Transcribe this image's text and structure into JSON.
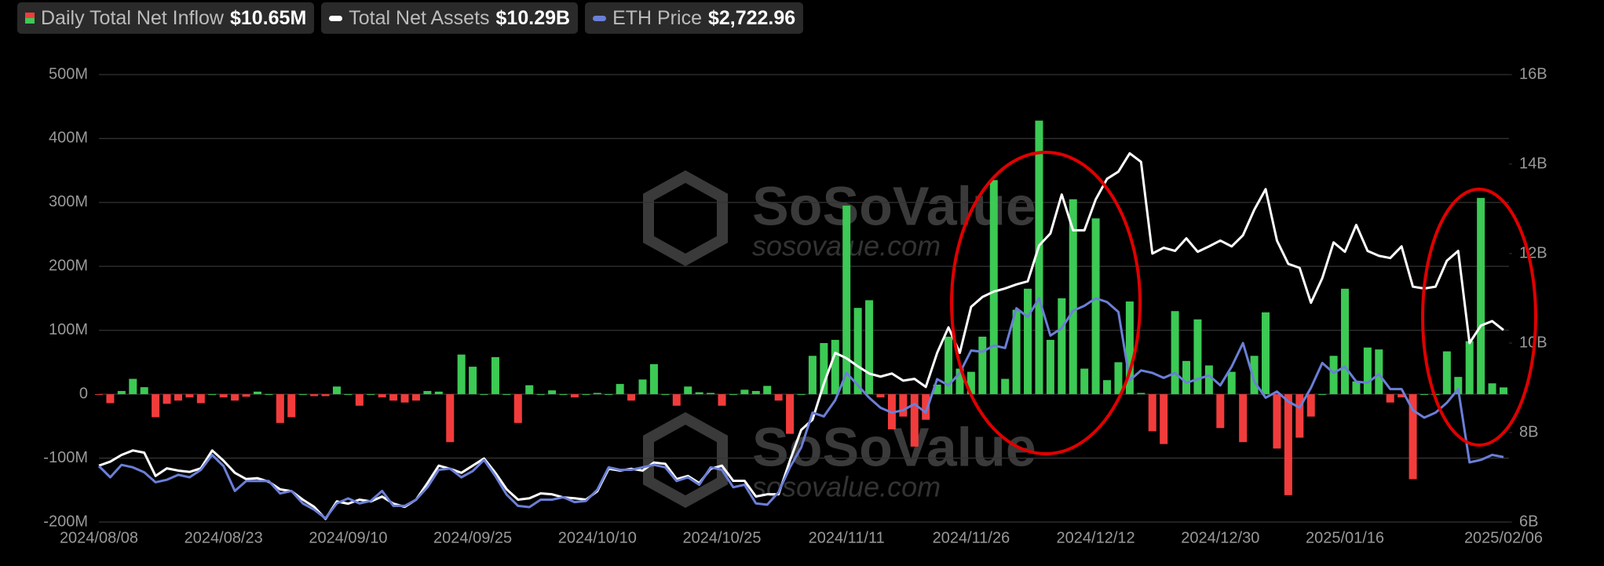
{
  "chart_data": {
    "type": "bar",
    "watermark": {
      "name": "SoSoValue",
      "url": "sosovalue.com"
    },
    "categories": [
      "2024/08/08",
      null,
      null,
      null,
      null,
      null,
      null,
      null,
      null,
      null,
      null,
      "2024/08/23",
      null,
      null,
      null,
      null,
      null,
      null,
      null,
      null,
      null,
      null,
      "2024/09/10",
      null,
      null,
      null,
      null,
      null,
      null,
      null,
      null,
      null,
      null,
      "2024/09/25",
      null,
      null,
      null,
      null,
      null,
      null,
      null,
      null,
      null,
      null,
      "2024/10/10",
      null,
      null,
      null,
      null,
      null,
      null,
      null,
      null,
      null,
      null,
      "2024/10/25",
      null,
      null,
      null,
      null,
      null,
      null,
      null,
      null,
      null,
      null,
      "2024/11/11",
      null,
      null,
      null,
      null,
      null,
      null,
      null,
      null,
      null,
      null,
      "2024/11/26",
      null,
      null,
      null,
      null,
      null,
      null,
      null,
      null,
      null,
      null,
      "2024/12/12",
      null,
      null,
      null,
      null,
      null,
      null,
      null,
      null,
      null,
      null,
      "2024/12/30",
      null,
      null,
      null,
      null,
      null,
      null,
      null,
      null,
      null,
      null,
      "2025/01/16",
      null,
      null,
      null,
      null,
      null,
      null,
      null,
      null,
      null,
      null,
      null,
      null,
      null,
      "2025/02/06"
    ],
    "ylim": [
      -200,
      500
    ],
    "yticks": [
      {
        "value": -200,
        "label": "-200M"
      },
      {
        "value": -100,
        "label": "-100M"
      },
      0,
      {
        "value": 100,
        "label": "100M"
      },
      {
        "value": 200,
        "label": "200M"
      },
      {
        "value": 300,
        "label": "300M"
      },
      {
        "value": 400,
        "label": "400M"
      },
      {
        "value": 500,
        "label": "500M"
      }
    ],
    "y2lim": [
      6,
      16
    ],
    "y2ticks": [
      {
        "value": 6,
        "label": "6B"
      },
      {
        "value": 8,
        "label": "8B"
      },
      {
        "value": 10,
        "label": "10B"
      },
      {
        "value": 12,
        "label": "12B"
      },
      {
        "value": 14,
        "label": "14B"
      },
      {
        "value": 16,
        "label": "16B"
      }
    ],
    "y3lim": [
      2200,
      5800
    ],
    "grid": true,
    "series": [
      {
        "name": "Daily Total Net Inflow",
        "latest_label": "$10.65M",
        "color": "#3cc954",
        "negative_color": "#f23c3c",
        "values": [
          -1,
          -14,
          5,
          24,
          11,
          -36,
          -15,
          -10,
          -5,
          -14,
          0,
          -5,
          -10,
          -4,
          4,
          0,
          -45,
          -36,
          0,
          -3,
          -3,
          12,
          0,
          -18,
          0,
          -5,
          -10,
          -13,
          -10,
          5,
          4,
          -75,
          62,
          43,
          0,
          58,
          0,
          -45,
          14,
          0,
          6,
          0,
          -5,
          0,
          2,
          0,
          16,
          -10,
          23,
          47,
          0,
          -18,
          12,
          3,
          2,
          -18,
          0,
          7,
          5,
          13,
          -10,
          -62,
          0,
          60,
          80,
          85,
          295,
          135,
          147,
          -5,
          -55,
          -35,
          -82,
          -40,
          15,
          90,
          40,
          35,
          90,
          335,
          24,
          132,
          165,
          428,
          85,
          150,
          305,
          40,
          275,
          22,
          50,
          145,
          2,
          -58,
          -78,
          130,
          52,
          117,
          45,
          -53,
          35,
          -75,
          60,
          128,
          -85,
          -158,
          -68,
          -35,
          0,
          60,
          165,
          20,
          73,
          70,
          -13,
          -5,
          -133,
          0,
          0,
          67,
          27,
          83,
          307,
          17,
          10.65
        ]
      },
      {
        "name": "Total Net Assets",
        "latest_label": "$10.29B",
        "color": "#ffffff",
        "axis": "y2",
        "values": [
          7.26,
          7.35,
          7.5,
          7.6,
          7.55,
          7.03,
          7.2,
          7.15,
          7.12,
          7.2,
          7.6,
          7.37,
          7.1,
          6.96,
          6.98,
          6.9,
          6.73,
          6.69,
          6.5,
          6.34,
          6.07,
          6.46,
          6.41,
          6.5,
          6.46,
          6.57,
          6.41,
          6.34,
          6.5,
          6.87,
          7.26,
          7.19,
          7.1,
          7.26,
          7.42,
          7.1,
          6.73,
          6.5,
          6.53,
          6.64,
          6.62,
          6.55,
          6.53,
          6.5,
          6.69,
          7.19,
          7.15,
          7.19,
          7.15,
          7.33,
          7.3,
          6.96,
          7.03,
          6.87,
          7.19,
          7.26,
          6.92,
          6.92,
          6.57,
          6.62,
          6.62,
          7.37,
          8.06,
          8.29,
          9.09,
          9.78,
          9.66,
          9.48,
          9.32,
          9.25,
          9.32,
          9.16,
          9.2,
          9.02,
          9.78,
          10.35,
          9.78,
          10.81,
          11.03,
          11.15,
          11.22,
          11.31,
          11.38,
          12.18,
          12.45,
          13.32,
          12.52,
          12.52,
          13.21,
          13.67,
          13.83,
          14.24,
          14.05,
          12.0,
          12.13,
          12.06,
          12.34,
          12.04,
          12.16,
          12.29,
          12.16,
          12.41,
          12.98,
          13.44,
          12.29,
          11.77,
          11.68,
          10.9,
          11.45,
          12.25,
          12.04,
          12.64,
          12.06,
          11.95,
          11.9,
          12.16,
          11.26,
          11.22,
          11.26,
          11.84,
          12.06,
          10.0,
          10.39,
          10.49,
          10.29
        ]
      },
      {
        "name": "ETH Price",
        "latest_label": "$2,722.96",
        "color": "#6b7fd7",
        "axis": "y3",
        "values": [
          2650,
          2560,
          2660,
          2640,
          2600,
          2520,
          2540,
          2580,
          2560,
          2620,
          2740,
          2650,
          2450,
          2530,
          2530,
          2530,
          2430,
          2450,
          2350,
          2300,
          2230,
          2350,
          2390,
          2350,
          2370,
          2450,
          2330,
          2330,
          2380,
          2480,
          2620,
          2630,
          2560,
          2610,
          2700,
          2570,
          2420,
          2330,
          2320,
          2380,
          2380,
          2400,
          2360,
          2370,
          2460,
          2640,
          2620,
          2620,
          2640,
          2660,
          2640,
          2530,
          2560,
          2500,
          2640,
          2620,
          2480,
          2500,
          2350,
          2340,
          2440,
          2640,
          2800,
          3080,
          3050,
          3180,
          3400,
          3300,
          3200,
          3120,
          3080,
          3100,
          3150,
          3080,
          3350,
          3300,
          3400,
          3580,
          3570,
          3620,
          3600,
          3920,
          3850,
          4000,
          3700,
          3760,
          3900,
          3940,
          4000,
          3970,
          3890,
          3340,
          3420,
          3400,
          3360,
          3400,
          3320,
          3350,
          3380,
          3300,
          3450,
          3640,
          3330,
          3200,
          3250,
          3170,
          3120,
          3280,
          3480,
          3400,
          3450,
          3330,
          3320,
          3390,
          3270,
          3270,
          3100,
          3040,
          3080,
          3160,
          3270,
          2680,
          2700,
          2740,
          2722.96
        ]
      }
    ]
  }
}
